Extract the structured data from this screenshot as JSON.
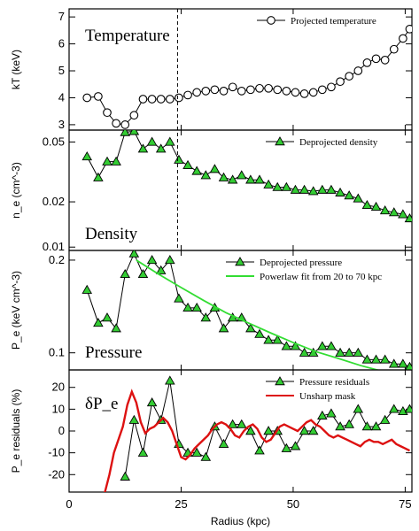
{
  "chart_data": [
    {
      "type": "line",
      "panel_label": "Temperature",
      "ylabel": "kT (keV)",
      "ylim": [
        2.8,
        7.3
      ],
      "yticks": [
        3,
        4,
        5,
        6,
        7
      ],
      "ytick_labels": [
        "3",
        "4",
        "5",
        "6",
        "7"
      ],
      "series": [
        {
          "name": "Projected temperature",
          "marker": "open-circle",
          "color": "#000000",
          "x": [
            4,
            6.5,
            8.5,
            10.5,
            12.5,
            14.5,
            16.5,
            18.5,
            20.5,
            22.5,
            24.5,
            26.5,
            28.5,
            30.5,
            32.5,
            34.5,
            36.5,
            38.5,
            40.5,
            42.5,
            44.5,
            46.5,
            48.5,
            50.5,
            52.5,
            54.5,
            56.5,
            58.5,
            60.5,
            62.5,
            64.5,
            66.5,
            68.5,
            70.5,
            72.5,
            74.5,
            76
          ],
          "y": [
            4.0,
            4.05,
            3.45,
            3.05,
            3.0,
            3.35,
            3.95,
            3.95,
            3.95,
            3.95,
            4.0,
            4.1,
            4.2,
            4.25,
            4.3,
            4.25,
            4.4,
            4.25,
            4.3,
            4.35,
            4.35,
            4.3,
            4.25,
            4.2,
            4.15,
            4.2,
            4.3,
            4.4,
            4.6,
            4.8,
            5.0,
            5.3,
            5.45,
            5.4,
            5.8,
            6.2,
            6.55
          ]
        }
      ]
    },
    {
      "type": "line",
      "panel_label": "Density",
      "ylabel": "n_e (cm^-3)",
      "scale": "log",
      "ylim": [
        0.0095,
        0.06
      ],
      "yticks": [
        0.01,
        0.02,
        0.05
      ],
      "ytick_labels": [
        "0.01",
        "0.02",
        "0.05"
      ],
      "series": [
        {
          "name": "Deprojected density",
          "marker": "filled-triangle",
          "color": "#33cc33",
          "x": [
            4,
            6.5,
            8.5,
            10.5,
            12.5,
            14.5,
            16.5,
            18.5,
            20.5,
            22.5,
            24.5,
            26.5,
            28.5,
            30.5,
            32.5,
            34.5,
            36.5,
            38.5,
            40.5,
            42.5,
            44.5,
            46.5,
            48.5,
            50.5,
            52.5,
            54.5,
            56.5,
            58.5,
            60.5,
            62.5,
            64.5,
            66.5,
            68.5,
            70.5,
            72.5,
            74.5,
            76
          ],
          "y": [
            0.04,
            0.029,
            0.037,
            0.037,
            0.058,
            0.059,
            0.045,
            0.05,
            0.045,
            0.05,
            0.038,
            0.035,
            0.032,
            0.03,
            0.033,
            0.029,
            0.028,
            0.03,
            0.028,
            0.028,
            0.026,
            0.025,
            0.025,
            0.024,
            0.024,
            0.0235,
            0.024,
            0.024,
            0.023,
            0.022,
            0.021,
            0.019,
            0.0185,
            0.0175,
            0.017,
            0.0165,
            0.0155
          ]
        }
      ]
    },
    {
      "type": "line",
      "panel_label": "Pressure",
      "ylabel": "P_e (keV cm^-3)",
      "scale": "log",
      "ylim": [
        0.088,
        0.215
      ],
      "yticks": [
        0.1,
        0.2
      ],
      "ytick_labels": [
        "0.1",
        "0.2"
      ],
      "series": [
        {
          "name": "Deprojected pressure",
          "marker": "filled-triangle",
          "color": "#33cc33",
          "x": [
            4,
            6.5,
            8.5,
            10.5,
            12.5,
            14.5,
            16.5,
            18.5,
            20.5,
            22.5,
            24.5,
            26.5,
            28.5,
            30.5,
            32.5,
            34.5,
            36.5,
            38.5,
            40.5,
            42.5,
            44.5,
            46.5,
            48.5,
            50.5,
            52.5,
            54.5,
            56.5,
            58.5,
            60.5,
            62.5,
            64.5,
            66.5,
            68.5,
            70.5,
            72.5,
            74.5,
            76
          ],
          "y": [
            0.16,
            0.125,
            0.13,
            0.12,
            0.18,
            0.21,
            0.18,
            0.2,
            0.185,
            0.2,
            0.15,
            0.14,
            0.14,
            0.13,
            0.14,
            0.12,
            0.13,
            0.13,
            0.12,
            0.115,
            0.11,
            0.11,
            0.105,
            0.105,
            0.1,
            0.1,
            0.105,
            0.105,
            0.1,
            0.1,
            0.1,
            0.095,
            0.095,
            0.095,
            0.092,
            0.092,
            0.09
          ]
        },
        {
          "name": "Powerlaw fit from 20 to 70 kpc",
          "marker": "none",
          "color": "#33dd33",
          "x": [
            15,
            20,
            25,
            30,
            35,
            40,
            45,
            50,
            55,
            60,
            65,
            70,
            76
          ],
          "y": [
            0.2,
            0.18,
            0.163,
            0.148,
            0.135,
            0.125,
            0.116,
            0.108,
            0.101,
            0.096,
            0.091,
            0.087,
            0.082
          ]
        }
      ]
    },
    {
      "type": "line",
      "panel_label": "δP_e",
      "ylabel": "P_e residuals (%)",
      "ylim": [
        -28,
        28
      ],
      "yticks": [
        -20,
        -10,
        0,
        10,
        20
      ],
      "ytick_labels": [
        "-20",
        "-10",
        "0",
        "10",
        "20"
      ],
      "series": [
        {
          "name": "Pressure residuals",
          "marker": "filled-triangle",
          "color": "#33cc33",
          "x": [
            12.5,
            14.5,
            16.5,
            18.5,
            20.5,
            22.5,
            24.5,
            26.5,
            28.5,
            30.5,
            32.5,
            34.5,
            36.5,
            38.5,
            40.5,
            42.5,
            44.5,
            46.5,
            48.5,
            50.5,
            52.5,
            54.5,
            56.5,
            58.5,
            60.5,
            62.5,
            64.5,
            66.5,
            68.5,
            70.5,
            72.5,
            74.5,
            76
          ],
          "y": [
            -21,
            5,
            -10,
            13,
            5,
            23,
            -6,
            -10,
            -10,
            -12,
            2,
            -6,
            3,
            3,
            0,
            -9,
            0,
            0,
            -8,
            -7,
            0,
            0,
            7,
            8,
            2,
            3,
            10,
            2,
            2,
            5,
            10,
            9,
            10
          ]
        },
        {
          "name": "Unsharp mask",
          "marker": "none",
          "color": "#dd1111",
          "x": [
            7,
            8,
            9,
            10,
            11,
            12,
            13,
            14,
            15,
            16,
            17,
            18,
            19,
            20,
            21,
            22,
            23,
            24,
            25,
            26,
            27,
            28,
            29,
            30,
            31,
            32,
            33,
            34,
            35,
            36,
            37,
            38,
            39,
            40,
            41,
            42,
            43,
            44,
            45,
            46,
            47,
            48,
            49,
            50,
            51,
            52,
            53,
            54,
            55,
            56,
            57,
            58,
            59,
            60,
            61,
            62,
            63,
            64,
            65,
            66,
            67,
            68,
            69,
            70,
            71,
            72,
            73,
            74,
            75,
            76
          ],
          "y": [
            -30,
            -28,
            -20,
            -10,
            -4,
            2,
            12,
            18,
            13,
            4,
            -1,
            1,
            2,
            4,
            6,
            4,
            0,
            -6,
            -12,
            -13,
            -11,
            -8,
            -6,
            -4,
            -2,
            1,
            3,
            4,
            3,
            1,
            -2,
            -3,
            0,
            2,
            3,
            1,
            -3,
            -5,
            -4,
            -1,
            2,
            3,
            2,
            1,
            0,
            2,
            4,
            5,
            3,
            2,
            0,
            -2,
            -3,
            -2,
            -3,
            -4,
            -5,
            -6,
            -7,
            -5,
            -4,
            -5,
            -5,
            -6,
            -5,
            -4,
            -6,
            -7,
            -8,
            -9
          ]
        }
      ]
    }
  ],
  "shared_x": {
    "xlabel": "Radius (kpc)",
    "xlim": [
      0,
      76.5
    ],
    "xticks": [
      0,
      25,
      50,
      75
    ],
    "xtick_labels": [
      "0",
      "25",
      "50",
      "75"
    ],
    "vline_x": 24.2
  }
}
